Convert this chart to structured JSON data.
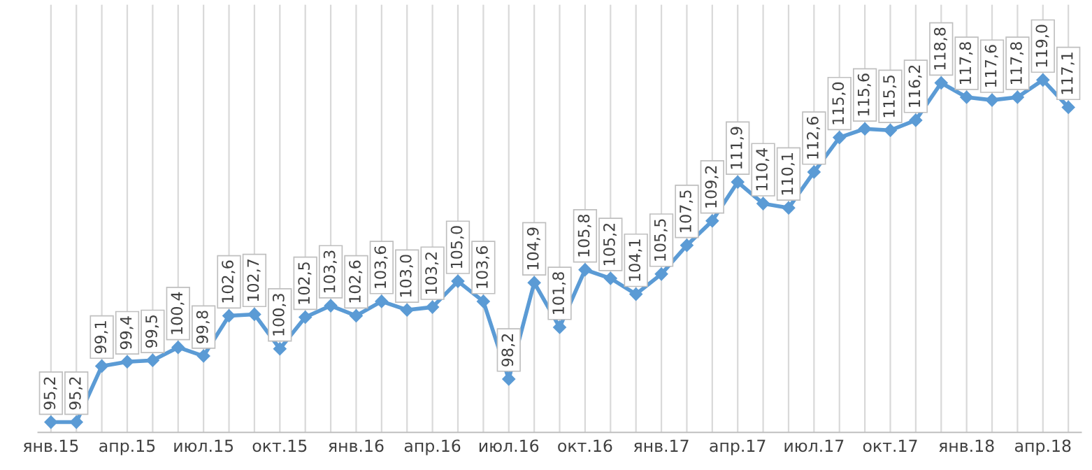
{
  "chart_data": {
    "type": "line",
    "categories": [
      "янв.15",
      null,
      null,
      "апр.15",
      null,
      null,
      "июл.15",
      null,
      null,
      "окт.15",
      null,
      null,
      "янв.16",
      null,
      null,
      "апр.16",
      null,
      null,
      "июл.16",
      null,
      null,
      "окт.16",
      null,
      null,
      "янв.17",
      null,
      null,
      "апр.17",
      null,
      null,
      "июл.17",
      null,
      null,
      "окт.17",
      null,
      null,
      "янв.18",
      null,
      null,
      "апр.18",
      null
    ],
    "series": [
      {
        "color": "#5b9bd5",
        "values": [
          95.2,
          95.2,
          99.1,
          99.4,
          99.5,
          100.4,
          99.8,
          102.6,
          102.7,
          100.3,
          102.5,
          103.3,
          102.6,
          103.6,
          103.0,
          103.2,
          105.0,
          103.6,
          98.2,
          104.9,
          101.8,
          105.8,
          105.2,
          104.1,
          105.5,
          107.5,
          109.2,
          111.9,
          110.4,
          110.1,
          112.6,
          115.0,
          115.6,
          115.5,
          116.2,
          118.8,
          117.8,
          117.6,
          117.8,
          119.0,
          117.1
        ],
        "value_labels": [
          "95,2",
          "95,2",
          "99,1",
          "99,4",
          "99,5",
          "100,4",
          "99,8",
          "102,6",
          "102,7",
          "100,3",
          "102,5",
          "103,3",
          "102,6",
          "103,6",
          "103,0",
          "103,2",
          "105,0",
          "103,6",
          "98,2",
          "104,9",
          "101,8",
          "105,8",
          "105,2",
          "104,1",
          "105,5",
          "107,5",
          "109,2",
          "111,9",
          "110,4",
          "110,1",
          "112,6",
          "115,0",
          "115,6",
          "115,5",
          "116,2",
          "118,8",
          "117,8",
          "117,6",
          "117,8",
          "119,0",
          "117,1"
        ]
      }
    ],
    "marker": "diamond",
    "line_style": "solid",
    "grid": "x",
    "legend": false
  }
}
